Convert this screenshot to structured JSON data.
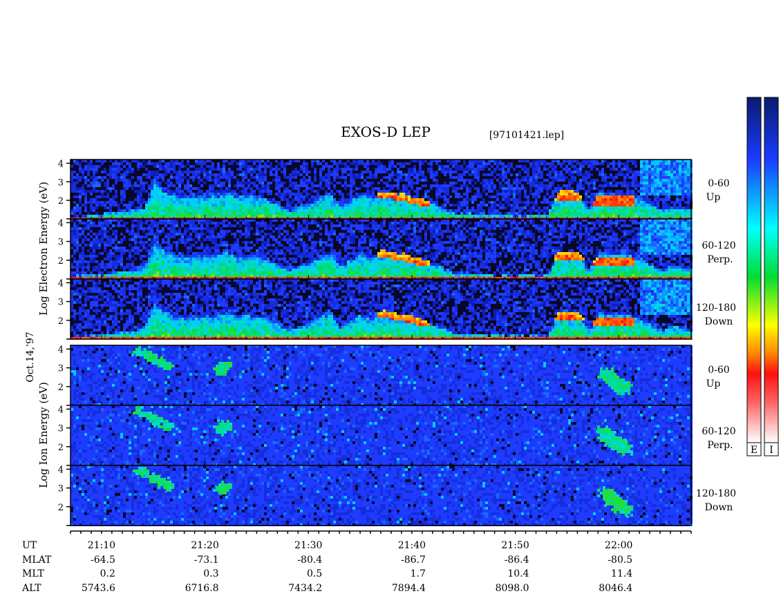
{
  "chart_data": {
    "type": "heatmap",
    "title": "EXOS-D LEP",
    "subtitle": "[97101421.lep]",
    "date_label": "Oct.14,'97",
    "electron_ylabel": "Log  Electron  Energy (eV)",
    "ion_ylabel": "Log  Ion  Energy (eV)",
    "ylim": [
      1,
      4.2
    ],
    "yticks": [
      "4",
      "3",
      "2"
    ],
    "ion_bottom_ytick": "2",
    "xlim_minutes_after_2100": [
      7,
      67
    ],
    "x_major_ticks": [
      "21:10",
      "21:20",
      "21:30",
      "21:40",
      "21:50",
      "22:00"
    ],
    "panels": [
      {
        "species": "electron",
        "pitch_angle": "0-60",
        "direction": "Up"
      },
      {
        "species": "electron",
        "pitch_angle": "60-120",
        "direction": "Perp."
      },
      {
        "species": "electron",
        "pitch_angle": "120-180",
        "direction": "Down"
      },
      {
        "species": "ion",
        "pitch_angle": "0-60",
        "direction": "Up"
      },
      {
        "species": "ion",
        "pitch_angle": "60-120",
        "direction": "Perp."
      },
      {
        "species": "ion",
        "pitch_angle": "120-180",
        "direction": "Down"
      }
    ],
    "colorbar_labels": [
      "E",
      "I"
    ],
    "ephemeris": {
      "row_labels": [
        "UT",
        "MLAT",
        "MLT",
        "ALT"
      ],
      "UT": [
        "21:10",
        "21:20",
        "21:30",
        "21:40",
        "21:50",
        "22:00"
      ],
      "MLAT": [
        "-64.5",
        "-73.1",
        "-80.4",
        "-86.7",
        "-86.4",
        "-80.5"
      ],
      "MLT": [
        "0.2",
        "0.3",
        "0.5",
        "1.7",
        "10.4",
        "11.4"
      ],
      "ALT": [
        "5743.6",
        "6716.8",
        "7434.2",
        "7894.4",
        "8098.0",
        "8046.4"
      ]
    },
    "electron_profile": [
      {
        "t": 7,
        "top": 1.2,
        "peak": 0
      },
      {
        "t": 10,
        "top": 1.35,
        "peak": 0
      },
      {
        "t": 12,
        "top": 1.5,
        "peak": 0
      },
      {
        "t": 14,
        "top": 1.7,
        "peak": 0
      },
      {
        "t": 15,
        "top": 3.3,
        "peak": 0
      },
      {
        "t": 16,
        "top": 2.7,
        "peak": 0
      },
      {
        "t": 17,
        "top": 2.5,
        "peak": 0
      },
      {
        "t": 18,
        "top": 2.3,
        "peak": 0
      },
      {
        "t": 20,
        "top": 2.5,
        "peak": 0
      },
      {
        "t": 21,
        "top": 2.4,
        "peak": 0
      },
      {
        "t": 22,
        "top": 2.7,
        "peak": 0
      },
      {
        "t": 23,
        "top": 2.4,
        "peak": 0
      },
      {
        "t": 24,
        "top": 2.5,
        "peak": 0
      },
      {
        "t": 25,
        "top": 2.4,
        "peak": 0
      },
      {
        "t": 26,
        "top": 2.2,
        "peak": 0
      },
      {
        "t": 27,
        "top": 1.9,
        "peak": 0
      },
      {
        "t": 28,
        "top": 1.6,
        "peak": 0
      },
      {
        "t": 29,
        "top": 1.8,
        "peak": 0
      },
      {
        "t": 30,
        "top": 2.0,
        "peak": 0
      },
      {
        "t": 31,
        "top": 2.4,
        "peak": 0
      },
      {
        "t": 32,
        "top": 2.6,
        "peak": 0
      },
      {
        "t": 33,
        "top": 1.8,
        "peak": 0
      },
      {
        "t": 34,
        "top": 2.2,
        "peak": 0
      },
      {
        "t": 35,
        "top": 2.5,
        "peak": 0
      },
      {
        "t": 36,
        "top": 2.3,
        "peak": 0
      },
      {
        "t": 37,
        "top": 2.6,
        "peak": 2.5
      },
      {
        "t": 38,
        "top": 2.5,
        "peak": 2.4
      },
      {
        "t": 39,
        "top": 2.4,
        "peak": 2.3
      },
      {
        "t": 40,
        "top": 2.3,
        "peak": 2.2
      },
      {
        "t": 41,
        "top": 2.1,
        "peak": 2.0
      },
      {
        "t": 42,
        "top": 1.9,
        "peak": 0
      },
      {
        "t": 43,
        "top": 1.7,
        "peak": 0
      },
      {
        "t": 44,
        "top": 1.4,
        "peak": 0
      },
      {
        "t": 46,
        "top": 1.35,
        "peak": 0
      },
      {
        "t": 48,
        "top": 1.3,
        "peak": 0
      },
      {
        "t": 50,
        "top": 1.3,
        "peak": 0
      },
      {
        "t": 53,
        "top": 1.3,
        "peak": 0
      },
      {
        "t": 54,
        "top": 2.5,
        "peak": 2.3
      },
      {
        "t": 55,
        "top": 2.6,
        "peak": 2.3
      },
      {
        "t": 56,
        "top": 2.5,
        "peak": 2.3
      },
      {
        "t": 57,
        "top": 1.6,
        "peak": 0
      },
      {
        "t": 58,
        "top": 2.6,
        "peak": 2.0
      },
      {
        "t": 59,
        "top": 2.5,
        "peak": 2.0
      },
      {
        "t": 60,
        "top": 2.6,
        "peak": 2.0
      },
      {
        "t": 61,
        "top": 2.5,
        "peak": 2.0
      },
      {
        "t": 62,
        "top": 2.3,
        "peak": 0
      },
      {
        "t": 63,
        "top": 2.0,
        "peak": 0
      },
      {
        "t": 64,
        "top": 1.6,
        "peak": 0
      },
      {
        "t": 65,
        "top": 1.8,
        "peak": 0
      },
      {
        "t": 66,
        "top": 1.7,
        "peak": 0
      },
      {
        "t": 67,
        "top": 1.6,
        "peak": 0
      }
    ],
    "ion_features": [
      {
        "t0": 13.5,
        "e0": 4.0,
        "t1": 16.5,
        "e1": 3.1,
        "w": 6
      },
      {
        "t0": 21.3,
        "e0": 2.9,
        "t1": 21.9,
        "e1": 3.2,
        "w": 6
      },
      {
        "t0": 58.5,
        "e0": 2.8,
        "t1": 60.5,
        "e1": 1.9,
        "w": 9
      }
    ]
  }
}
